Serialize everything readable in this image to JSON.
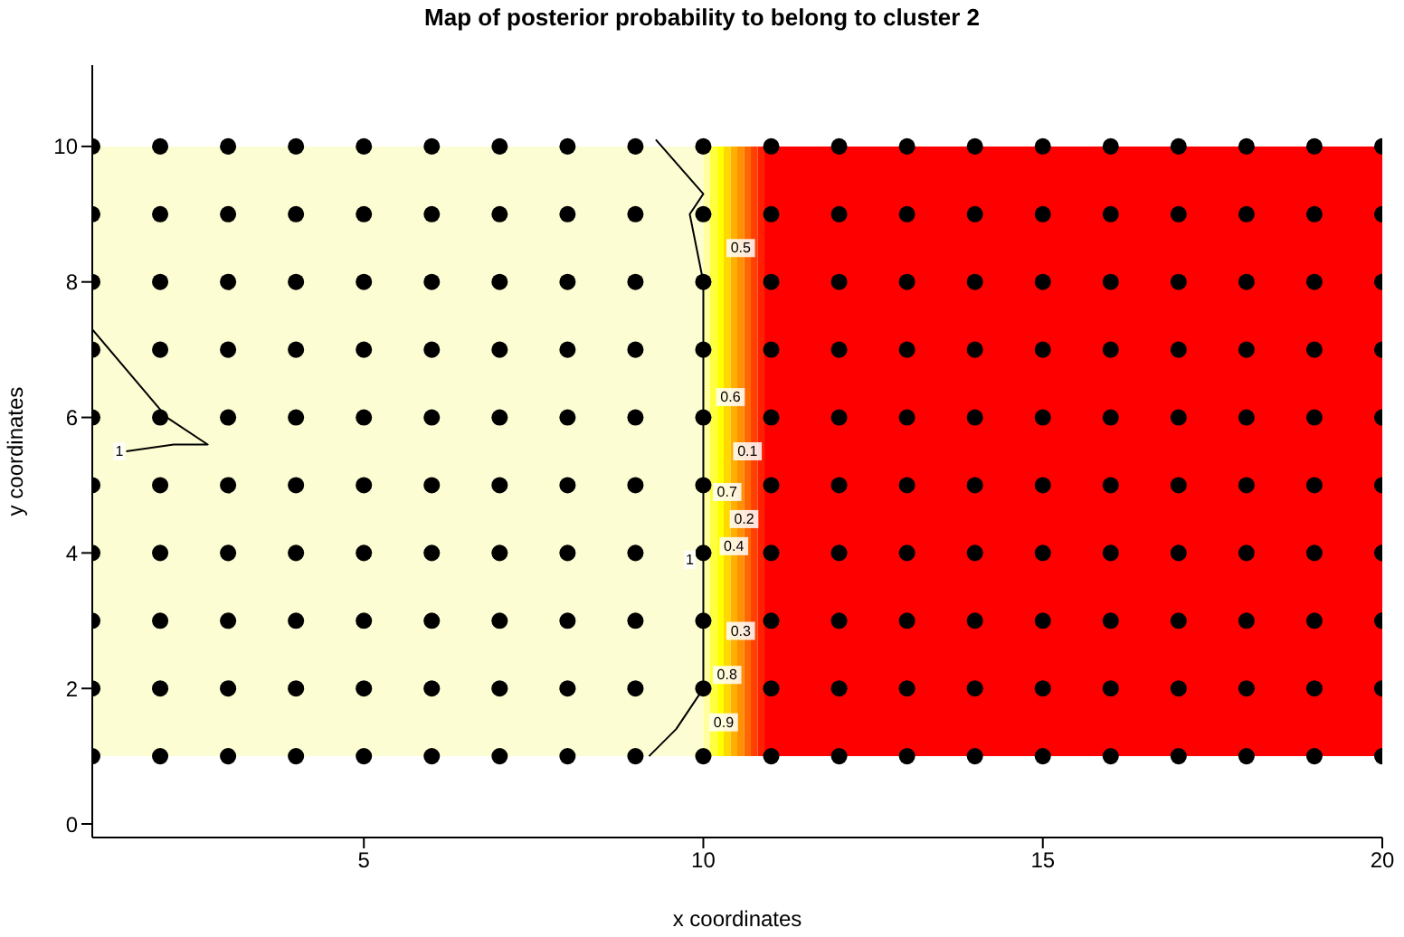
{
  "chart_data": {
    "type": "scatter",
    "title": "Map of posterior probability to belong to cluster  2",
    "xlabel": "x coordinates",
    "ylabel": "y coordinates",
    "xlim": [
      1,
      20
    ],
    "ylim": [
      -0.2,
      11.2
    ],
    "xticks": [
      5,
      10,
      15,
      20
    ],
    "yticks": [
      0,
      2,
      4,
      6,
      8,
      10
    ],
    "grid": false,
    "marker": "circle",
    "bands": [
      {
        "axis": "x",
        "from": 1,
        "to": 10,
        "color": "#fdfdd4"
      },
      {
        "axis": "x",
        "from": 10,
        "to": 10.1,
        "color": "#ffffa0"
      },
      {
        "axis": "x",
        "from": 10.1,
        "to": 10.2,
        "color": "#ffff40"
      },
      {
        "axis": "x",
        "from": 10.2,
        "to": 10.3,
        "color": "#ffff00"
      },
      {
        "axis": "x",
        "from": 10.3,
        "to": 10.4,
        "color": "#ffd800"
      },
      {
        "axis": "x",
        "from": 10.4,
        "to": 10.5,
        "color": "#ffb000"
      },
      {
        "axis": "x",
        "from": 10.5,
        "to": 10.6,
        "color": "#ff9000"
      },
      {
        "axis": "x",
        "from": 10.6,
        "to": 10.7,
        "color": "#ff6800"
      },
      {
        "axis": "x",
        "from": 10.7,
        "to": 10.8,
        "color": "#ff4000"
      },
      {
        "axis": "x",
        "from": 10.8,
        "to": 10.9,
        "color": "#ff2000"
      },
      {
        "axis": "x",
        "from": 10.9,
        "to": 20,
        "color": "#ff0000"
      }
    ],
    "series": [
      {
        "color": "#000000",
        "x": [
          1,
          2,
          3,
          4,
          5,
          6,
          7,
          8,
          9,
          10,
          11,
          12,
          13,
          14,
          15,
          16,
          17,
          18,
          19,
          20,
          1,
          2,
          3,
          4,
          5,
          6,
          7,
          8,
          9,
          10,
          11,
          12,
          13,
          14,
          15,
          16,
          17,
          18,
          19,
          20,
          1,
          2,
          3,
          4,
          5,
          6,
          7,
          8,
          9,
          10,
          11,
          12,
          13,
          14,
          15,
          16,
          17,
          18,
          19,
          20,
          1,
          2,
          3,
          4,
          5,
          6,
          7,
          8,
          9,
          10,
          11,
          12,
          13,
          14,
          15,
          16,
          17,
          18,
          19,
          20,
          1,
          2,
          3,
          4,
          5,
          6,
          7,
          8,
          9,
          10,
          11,
          12,
          13,
          14,
          15,
          16,
          17,
          18,
          19,
          20,
          1,
          2,
          3,
          4,
          5,
          6,
          7,
          8,
          9,
          10,
          11,
          12,
          13,
          14,
          15,
          16,
          17,
          18,
          19,
          20,
          1,
          2,
          3,
          4,
          5,
          6,
          7,
          8,
          9,
          10,
          11,
          12,
          13,
          14,
          15,
          16,
          17,
          18,
          19,
          20,
          1,
          2,
          3,
          4,
          5,
          6,
          7,
          8,
          9,
          10,
          11,
          12,
          13,
          14,
          15,
          16,
          17,
          18,
          19,
          20,
          1,
          2,
          3,
          4,
          5,
          6,
          7,
          8,
          9,
          10,
          11,
          12,
          13,
          14,
          15,
          16,
          17,
          18,
          19,
          20,
          1,
          2,
          3,
          4,
          5,
          6,
          7,
          8,
          9,
          10,
          11,
          12,
          13,
          14,
          15,
          16,
          17,
          18,
          19,
          20
        ],
        "values": [
          1,
          1,
          1,
          1,
          1,
          1,
          1,
          1,
          1,
          1,
          1,
          1,
          1,
          1,
          1,
          1,
          1,
          1,
          1,
          1,
          2,
          2,
          2,
          2,
          2,
          2,
          2,
          2,
          2,
          2,
          2,
          2,
          2,
          2,
          2,
          2,
          2,
          2,
          2,
          2,
          3,
          3,
          3,
          3,
          3,
          3,
          3,
          3,
          3,
          3,
          3,
          3,
          3,
          3,
          3,
          3,
          3,
          3,
          3,
          3,
          4,
          4,
          4,
          4,
          4,
          4,
          4,
          4,
          4,
          4,
          4,
          4,
          4,
          4,
          4,
          4,
          4,
          4,
          4,
          4,
          5,
          5,
          5,
          5,
          5,
          5,
          5,
          5,
          5,
          5,
          5,
          5,
          5,
          5,
          5,
          5,
          5,
          5,
          5,
          5,
          6,
          6,
          6,
          6,
          6,
          6,
          6,
          6,
          6,
          6,
          6,
          6,
          6,
          6,
          6,
          6,
          6,
          6,
          6,
          6,
          7,
          7,
          7,
          7,
          7,
          7,
          7,
          7,
          7,
          7,
          7,
          7,
          7,
          7,
          7,
          7,
          7,
          7,
          7,
          7,
          8,
          8,
          8,
          8,
          8,
          8,
          8,
          8,
          8,
          8,
          8,
          8,
          8,
          8,
          8,
          8,
          8,
          8,
          8,
          8,
          9,
          9,
          9,
          9,
          9,
          9,
          9,
          9,
          9,
          9,
          9,
          9,
          9,
          9,
          9,
          9,
          9,
          9,
          9,
          9,
          10,
          10,
          10,
          10,
          10,
          10,
          10,
          10,
          10,
          10,
          10,
          10,
          10,
          10,
          10,
          10,
          10,
          10,
          10,
          10
        ]
      },
      {
        "type": "line",
        "color": "#000000",
        "marker": "none",
        "x": [
          1,
          2.1,
          2.7,
          2.2,
          1.5
        ],
        "values": [
          7.3,
          6,
          5.6,
          5.6,
          5.5
        ]
      },
      {
        "type": "line",
        "color": "#000000",
        "marker": "none",
        "x": [
          9.2,
          9.6,
          10,
          10,
          10,
          9.8,
          10,
          9.3
        ],
        "values": [
          1,
          1.4,
          2,
          5,
          8,
          9,
          9.3,
          10.1
        ]
      }
    ],
    "annotations": [
      {
        "text": "1",
        "x": 1.4,
        "y": 5.5
      },
      {
        "text": "1",
        "x": 9.8,
        "y": 3.9
      },
      {
        "text": "0.9",
        "x": 10.3,
        "y": 1.5
      },
      {
        "text": "0.8",
        "x": 10.35,
        "y": 2.2
      },
      {
        "text": "0.7",
        "x": 10.35,
        "y": 4.9
      },
      {
        "text": "0.6",
        "x": 10.4,
        "y": 6.3
      },
      {
        "text": "0.5",
        "x": 10.55,
        "y": 8.5
      },
      {
        "text": "0.4",
        "x": 10.45,
        "y": 4.1
      },
      {
        "text": "0.3",
        "x": 10.55,
        "y": 2.85
      },
      {
        "text": "0.2",
        "x": 10.6,
        "y": 4.5
      },
      {
        "text": "0.1",
        "x": 10.65,
        "y": 5.5
      }
    ]
  }
}
